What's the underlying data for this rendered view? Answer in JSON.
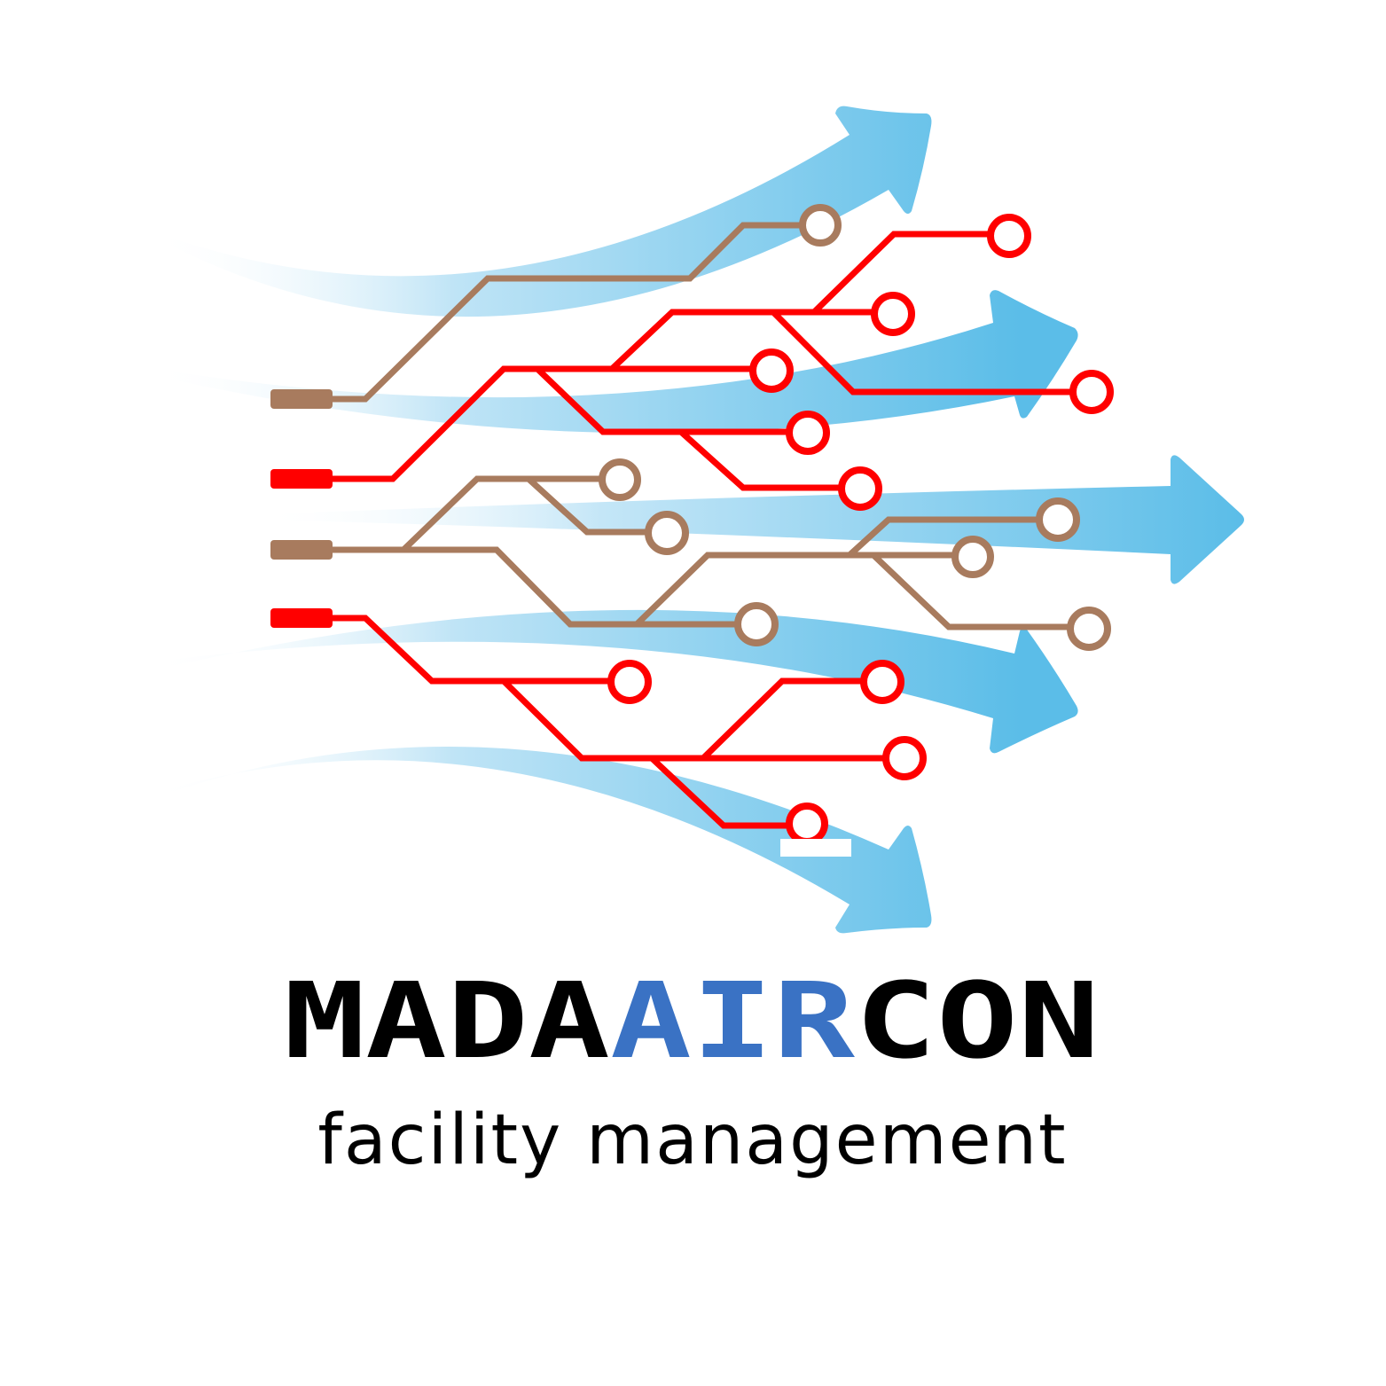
{
  "wordmark": {
    "parts": [
      "MADA",
      "AIR",
      "CON"
    ]
  },
  "tagline": "facility management"
}
